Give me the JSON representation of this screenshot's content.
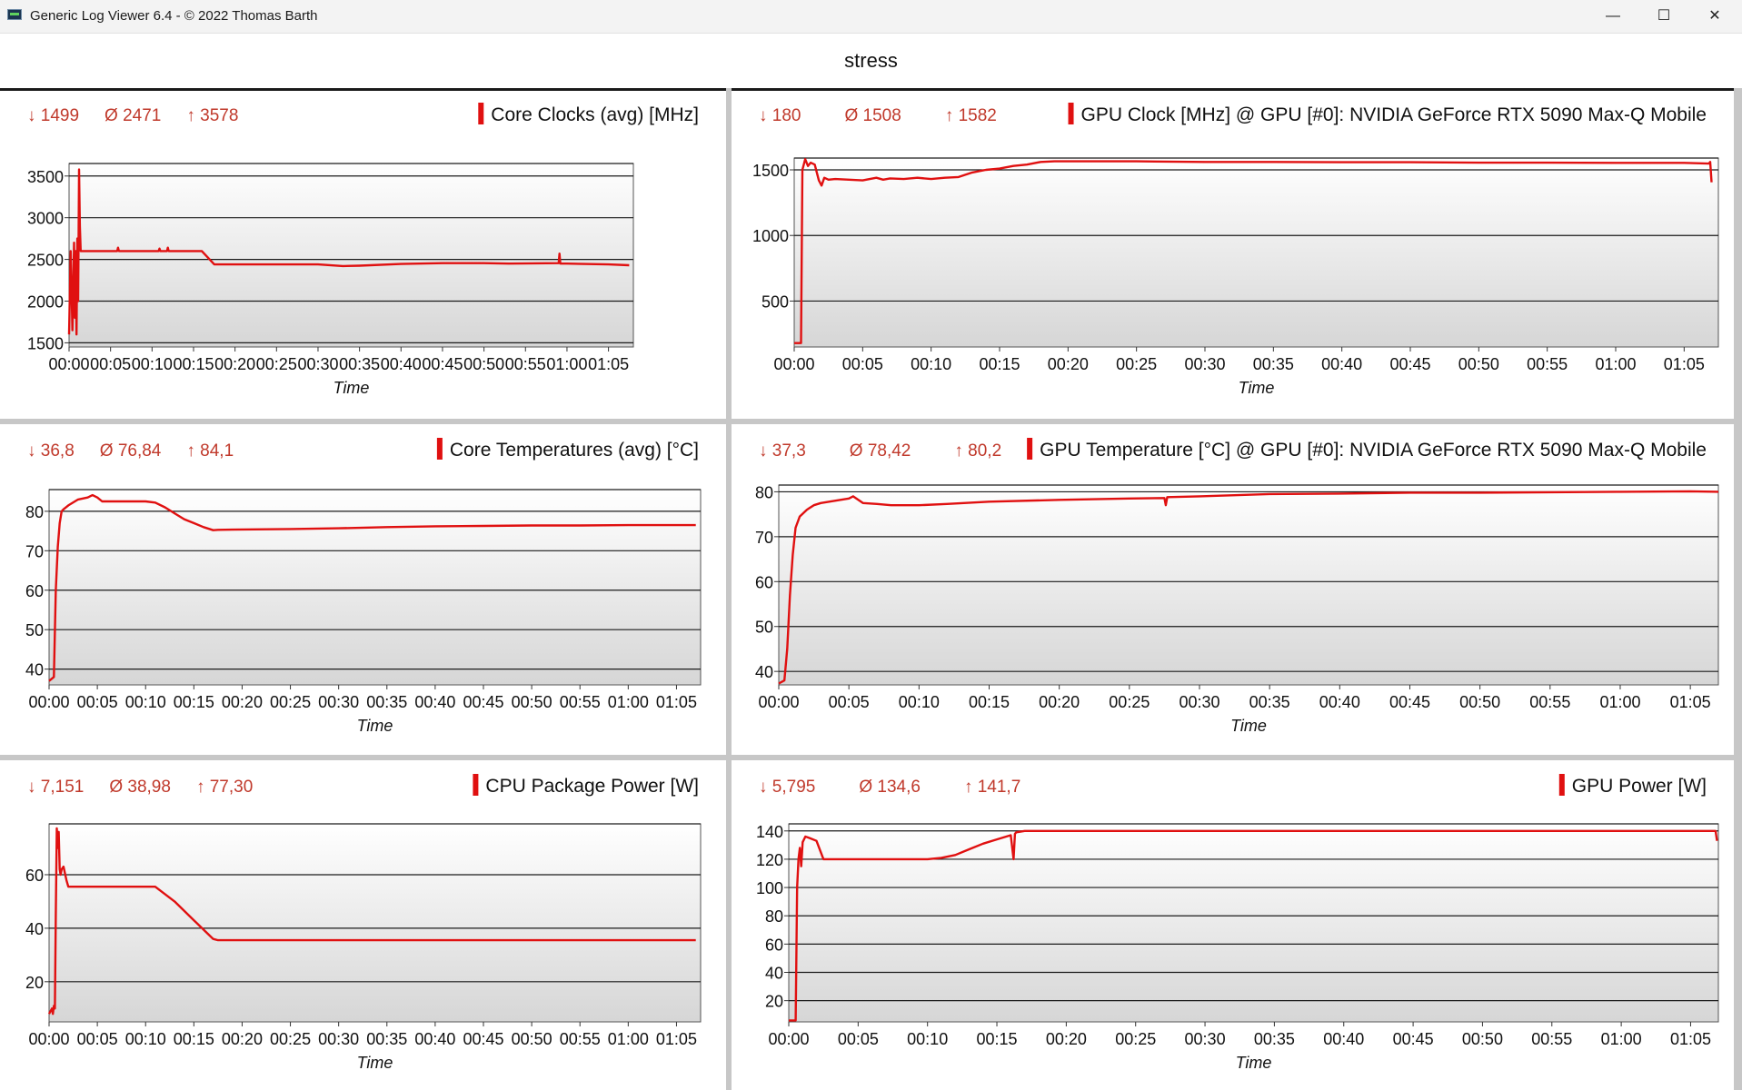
{
  "window": {
    "title": "Generic Log Viewer 6.4 - © 2022 Thomas Barth",
    "minimize_glyph": "—",
    "maximize_glyph": "☐",
    "close_glyph": "✕"
  },
  "document_title": "stress",
  "colors": {
    "series": "#e01010",
    "stat_text": "#c0392b",
    "plot_bg_top": "#ffffff",
    "plot_bg_bottom": "#d6d6d6"
  },
  "chart_data": [
    {
      "type": "line",
      "title": "Core Clocks (avg) [MHz]",
      "stats": {
        "min": "↓ 1499",
        "avg": "Ø 2471",
        "max": "↑ 3578"
      },
      "xlabel": "Time",
      "x_ticks": [
        "00:00",
        "00:05",
        "00:10",
        "00:15",
        "00:20",
        "00:25",
        "00:30",
        "00:35",
        "00:40",
        "00:45",
        "00:50",
        "00:55",
        "01:00",
        "01:05"
      ],
      "xlim": [
        0,
        68
      ],
      "ylim": [
        1450,
        3650
      ],
      "y_ticks": [
        1500,
        2000,
        2500,
        3000,
        3500
      ],
      "grid": true,
      "series": [
        {
          "x": [
            0,
            0.2,
            0.4,
            0.6,
            0.7,
            0.8,
            0.9,
            1.0,
            1.1,
            1.2,
            1.3,
            1.4,
            1.6,
            2,
            5,
            5.8,
            5.9,
            6,
            10,
            10.8,
            10.9,
            11,
            11.8,
            11.9,
            12,
            16,
            17.5,
            20,
            25,
            30,
            33,
            35,
            40,
            45,
            50,
            53,
            59,
            59.1,
            59.2,
            60,
            65,
            67.5
          ],
          "y": [
            1600,
            2600,
            1650,
            2700,
            1800,
            2600,
            1600,
            2750,
            2000,
            3578,
            2900,
            2600,
            2600,
            2600,
            2600,
            2600,
            2640,
            2600,
            2600,
            2600,
            2630,
            2600,
            2600,
            2640,
            2600,
            2600,
            2440,
            2440,
            2440,
            2440,
            2420,
            2425,
            2445,
            2455,
            2455,
            2450,
            2455,
            2570,
            2450,
            2450,
            2440,
            2430
          ]
        }
      ]
    },
    {
      "type": "line",
      "title": "GPU Clock [MHz] @ GPU [#0]: NVIDIA  GeForce RTX 5090 Max-Q Mobile",
      "stats": {
        "min": "↓ 180",
        "avg": "Ø 1508",
        "max": "↑ 1582"
      },
      "xlabel": "Time",
      "x_ticks": [
        "00:00",
        "00:05",
        "00:10",
        "00:15",
        "00:20",
        "00:25",
        "00:30",
        "00:35",
        "00:40",
        "00:45",
        "00:50",
        "00:55",
        "01:00",
        "01:05"
      ],
      "xlim": [
        0,
        67.5
      ],
      "ylim": [
        150,
        1590
      ],
      "y_ticks": [
        500,
        1000,
        1500
      ],
      "grid": true,
      "series": [
        {
          "x": [
            0,
            0.5,
            0.6,
            0.8,
            1.0,
            1.2,
            1.5,
            1.8,
            2.0,
            2.2,
            2.5,
            3,
            4,
            5,
            6,
            6.5,
            7,
            8,
            9,
            10,
            11,
            12,
            13,
            14,
            15,
            16,
            17,
            18,
            19,
            20,
            25,
            30,
            35,
            40,
            45,
            50,
            55,
            60,
            65,
            66.8,
            66.9,
            67
          ],
          "y": [
            180,
            180,
            1500,
            1582,
            1530,
            1555,
            1540,
            1420,
            1380,
            1440,
            1425,
            1430,
            1425,
            1420,
            1440,
            1425,
            1435,
            1430,
            1440,
            1430,
            1440,
            1445,
            1480,
            1500,
            1510,
            1530,
            1540,
            1560,
            1565,
            1565,
            1565,
            1560,
            1560,
            1558,
            1558,
            1555,
            1555,
            1553,
            1553,
            1548,
            1560,
            1405
          ]
        }
      ]
    },
    {
      "type": "line",
      "title": "Core Temperatures (avg) [°C]",
      "stats": {
        "min": "↓ 36,8",
        "avg": "Ø 76,84",
        "max": "↑ 84,1"
      },
      "xlabel": "Time",
      "x_ticks": [
        "00:00",
        "00:05",
        "00:10",
        "00:15",
        "00:20",
        "00:25",
        "00:30",
        "00:35",
        "00:40",
        "00:45",
        "00:50",
        "00:55",
        "01:00",
        "01:05"
      ],
      "xlim": [
        0,
        67.5
      ],
      "ylim": [
        36,
        85.5
      ],
      "y_ticks": [
        40,
        50,
        60,
        70,
        80
      ],
      "grid": true,
      "series": [
        {
          "x": [
            0,
            0.5,
            0.7,
            0.9,
            1.1,
            1.3,
            1.5,
            2,
            3,
            4,
            4.5,
            5,
            5.5,
            6,
            7,
            8,
            9,
            10,
            11,
            12,
            13,
            14,
            15,
            16,
            17,
            17.5,
            20,
            25,
            30,
            35,
            40,
            45,
            50,
            55,
            60,
            65,
            67
          ],
          "y": [
            37,
            38,
            60,
            71,
            77,
            80,
            80.5,
            81.5,
            83,
            83.5,
            84.1,
            83.5,
            82.5,
            82.5,
            82.5,
            82.5,
            82.5,
            82.5,
            82.2,
            81,
            79.5,
            78,
            77,
            76,
            75.2,
            75.3,
            75.4,
            75.5,
            75.7,
            76,
            76.2,
            76.3,
            76.4,
            76.4,
            76.5,
            76.5,
            76.5
          ]
        }
      ]
    },
    {
      "type": "line",
      "title": "GPU Temperature [°C] @ GPU [#0]: NVIDIA  GeForce RTX 5090 Max-Q Mobile",
      "stats": {
        "min": "↓ 37,3",
        "avg": "Ø 78,42",
        "max": "↑ 80,2"
      },
      "xlabel": "Time",
      "x_ticks": [
        "00:00",
        "00:05",
        "00:10",
        "00:15",
        "00:20",
        "00:25",
        "00:30",
        "00:35",
        "00:40",
        "00:45",
        "00:50",
        "00:55",
        "01:00",
        "01:05"
      ],
      "xlim": [
        0,
        67
      ],
      "ylim": [
        37,
        81.5
      ],
      "y_ticks": [
        40,
        50,
        60,
        70,
        80
      ],
      "grid": true,
      "series": [
        {
          "x": [
            0,
            0.4,
            0.6,
            0.8,
            1.0,
            1.2,
            1.5,
            2,
            2.5,
            3,
            4,
            5,
            5.3,
            6,
            7,
            8,
            10,
            12,
            15,
            20,
            25,
            27.5,
            27.6,
            27.7,
            30,
            35,
            40,
            45,
            50,
            55,
            60,
            65,
            67
          ],
          "y": [
            37.3,
            38,
            45,
            57,
            66,
            72,
            74.5,
            76,
            77,
            77.5,
            78,
            78.5,
            79,
            77.5,
            77.3,
            77,
            77,
            77.3,
            77.8,
            78.2,
            78.5,
            78.6,
            77,
            78.8,
            79,
            79.5,
            79.6,
            79.8,
            79.8,
            79.9,
            80,
            80.1,
            80
          ]
        }
      ]
    },
    {
      "type": "line",
      "title": "CPU Package Power [W]",
      "stats": {
        "min": "↓ 7,151",
        "avg": "Ø 38,98",
        "max": "↑ 77,30"
      },
      "xlabel": "Time",
      "x_ticks": [
        "00:00",
        "00:05",
        "00:10",
        "00:15",
        "00:20",
        "00:25",
        "00:30",
        "00:35",
        "00:40",
        "00:45",
        "00:50",
        "00:55",
        "01:00",
        "01:05"
      ],
      "xlim": [
        0,
        67.5
      ],
      "ylim": [
        5,
        79
      ],
      "y_ticks": [
        20,
        40,
        60
      ],
      "grid": true,
      "series": [
        {
          "x": [
            0,
            0.3,
            0.4,
            0.5,
            0.6,
            0.7,
            0.8,
            0.9,
            1.0,
            1.1,
            1.2,
            1.3,
            1.5,
            1.8,
            2.0,
            2.5,
            3,
            5,
            8,
            10,
            11,
            13,
            15,
            17,
            17.5,
            20,
            30,
            40,
            50,
            60,
            67
          ],
          "y": [
            8,
            10,
            8,
            11,
            10,
            45,
            77.3,
            70,
            76,
            62,
            60,
            62,
            63,
            58,
            55.5,
            55.5,
            55.5,
            55.5,
            55.5,
            55.5,
            55.5,
            50,
            43,
            36,
            35.5,
            35.5,
            35.5,
            35.5,
            35.5,
            35.5,
            35.5
          ]
        }
      ]
    },
    {
      "type": "line",
      "title": "GPU Power [W]",
      "stats": {
        "min": "↓ 5,795",
        "avg": "Ø 134,6",
        "max": "↑ 141,7"
      },
      "xlabel": "Time",
      "x_ticks": [
        "00:00",
        "00:05",
        "00:10",
        "00:15",
        "00:20",
        "00:25",
        "00:30",
        "00:35",
        "00:40",
        "00:45",
        "00:50",
        "00:55",
        "01:00",
        "01:05"
      ],
      "xlim": [
        0,
        67
      ],
      "ylim": [
        5,
        145
      ],
      "y_ticks": [
        20,
        40,
        60,
        80,
        100,
        120,
        140
      ],
      "grid": true,
      "series": [
        {
          "x": [
            0,
            0.5,
            0.6,
            0.7,
            0.8,
            0.9,
            1.0,
            1.2,
            1.5,
            2,
            2.5,
            3,
            5,
            6,
            8,
            10,
            11,
            12,
            13,
            14,
            15,
            16,
            16.2,
            16.3,
            16.4,
            17,
            18,
            20,
            30,
            40,
            50,
            60,
            65,
            66.8,
            66.9
          ],
          "y": [
            6,
            6,
            100,
            120,
            128,
            115,
            132,
            136,
            135,
            133,
            120,
            120,
            120,
            120,
            120,
            120,
            121,
            123,
            127,
            131,
            134,
            137,
            120,
            138,
            139,
            140,
            140,
            140,
            140,
            140,
            140,
            140,
            140,
            140,
            133
          ]
        }
      ]
    }
  ]
}
